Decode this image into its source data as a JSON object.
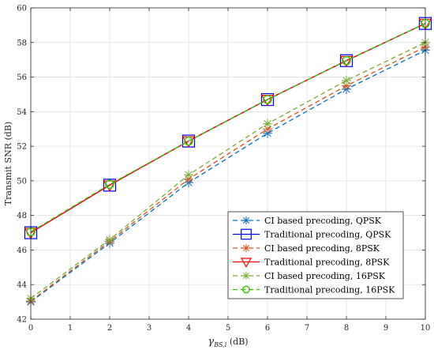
{
  "chart_data": {
    "type": "line",
    "xlabel": "γ",
    "xlabel_sub": "BS,i",
    "xlabel_unit": " (dB)",
    "ylabel": "Transmit SNR (dB)",
    "xlim": [
      0,
      10
    ],
    "ylim": [
      42,
      60
    ],
    "xticks": [
      0,
      1,
      2,
      3,
      4,
      5,
      6,
      7,
      8,
      9,
      10
    ],
    "yticks": [
      42,
      44,
      46,
      48,
      50,
      52,
      54,
      56,
      58,
      60
    ],
    "grid": true,
    "legend_position": "bottom-right",
    "x": [
      0,
      2,
      4,
      6,
      8,
      10
    ],
    "series": [
      {
        "name": "CI based precoding, QPSK",
        "values": [
          43.0,
          46.4,
          49.9,
          52.75,
          55.3,
          57.55
        ],
        "color": "#0072BD",
        "marker": "asterisk",
        "dash": "6,4"
      },
      {
        "name": "Traditional precoding, QPSK",
        "values": [
          47.0,
          49.75,
          52.3,
          54.7,
          56.95,
          59.1
        ],
        "color": "#0000FF",
        "marker": "square",
        "dash": ""
      },
      {
        "name": "CI based precoding, 8PSK",
        "values": [
          43.05,
          46.5,
          50.1,
          53.0,
          55.5,
          57.75
        ],
        "color": "#D95319",
        "marker": "asterisk",
        "dash": "6,4"
      },
      {
        "name": "Traditional precoding, 8PSK",
        "values": [
          47.0,
          49.75,
          52.3,
          54.7,
          56.95,
          59.1
        ],
        "color": "#FF0000",
        "marker": "triangle-down",
        "dash": ""
      },
      {
        "name": "CI based precoding, 16PSK",
        "values": [
          43.2,
          46.6,
          50.35,
          53.3,
          55.8,
          58.0
        ],
        "color": "#77AC30",
        "marker": "asterisk",
        "dash": "6,4"
      },
      {
        "name": "Traditional precoding, 16PSK",
        "values": [
          47.05,
          49.8,
          52.3,
          54.7,
          56.95,
          59.1
        ],
        "color": "#33CC00",
        "marker": "circle",
        "dash": "6,4"
      }
    ]
  }
}
